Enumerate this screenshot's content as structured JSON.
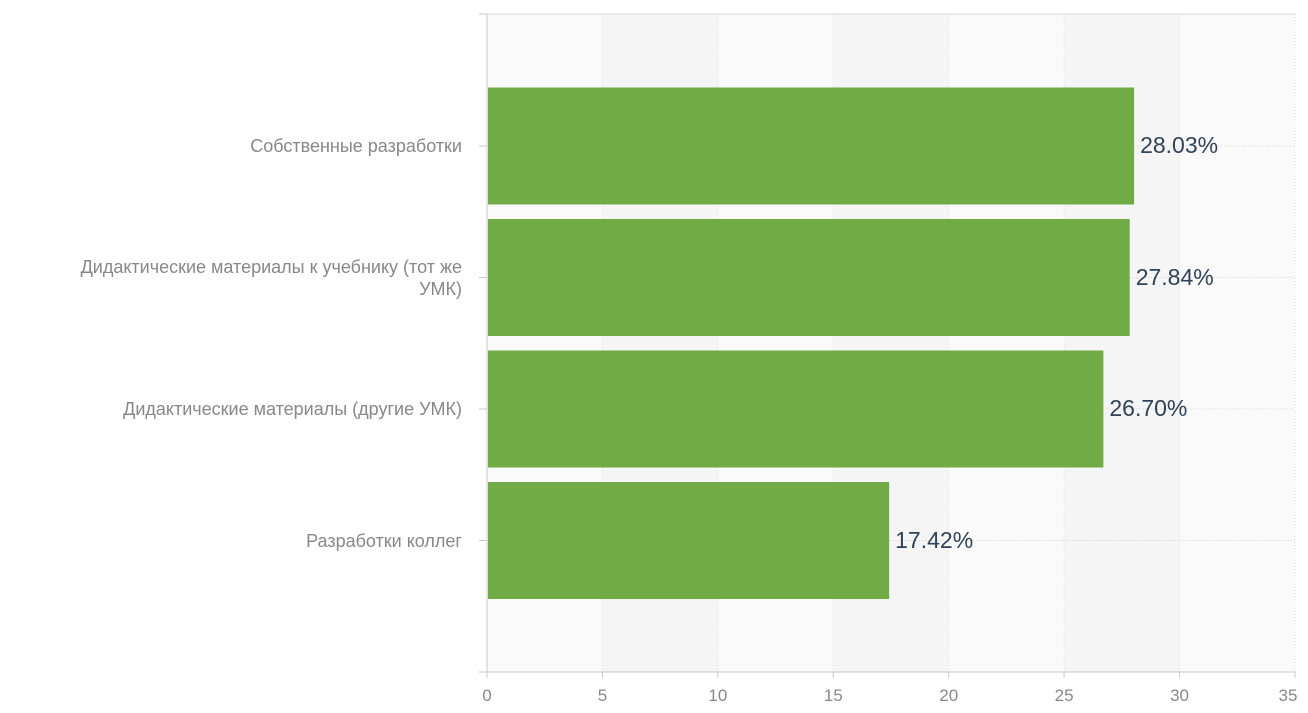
{
  "chart_data": {
    "type": "bar",
    "orientation": "horizontal",
    "categories": [
      "Собственные разработки",
      "Дидактические материалы к учебнику (тот же УМК)",
      "Дидактические материалы (другие УМК)",
      "Разработки коллег"
    ],
    "category_lines": [
      [
        "Собственные разработки"
      ],
      [
        "Дидактические материалы к учебнику (тот же",
        "УМК)"
      ],
      [
        "Дидактические материалы (другие УМК)"
      ],
      [
        "Разработки коллег"
      ]
    ],
    "values": [
      28.03,
      27.84,
      26.7,
      17.42
    ],
    "data_labels": [
      "28.03%",
      "27.84%",
      "26.70%",
      "17.42%"
    ],
    "xlim": [
      0,
      35
    ],
    "x_ticks": [
      "0",
      "5",
      "10",
      "15",
      "20",
      "25",
      "30",
      "35"
    ],
    "grid": true,
    "legend": "none",
    "title": "",
    "xlabel": "",
    "ylabel": "",
    "colors": {
      "bar": "#70ab46",
      "data_label": "#2f4358",
      "axis_label": "#888888",
      "grid": "#dcdcdc",
      "band_alt": "#f5f5f5",
      "band": "#fafafa"
    }
  }
}
